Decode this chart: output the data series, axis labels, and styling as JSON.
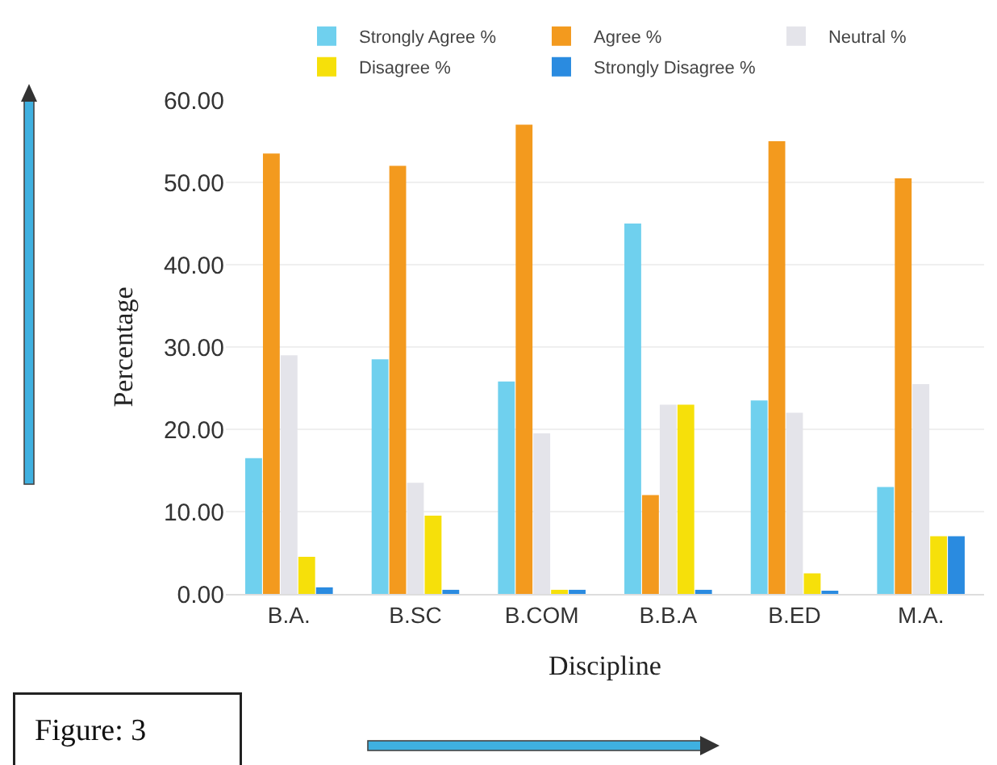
{
  "chart_data": {
    "type": "bar",
    "xlabel": "Discipline",
    "ylabel": "Percentage",
    "categories": [
      "B.A.",
      "B.SC",
      "B.COM",
      "B.B.A",
      "B.ED",
      "M.A."
    ],
    "series": [
      {
        "name": "Strongly Agree %",
        "color": "#6fd0ee",
        "values": [
          16.5,
          28.5,
          25.8,
          45,
          23.5,
          13
        ]
      },
      {
        "name": "Agree %",
        "color": "#f39a1e",
        "values": [
          53.5,
          52,
          57,
          12,
          55,
          50.5
        ]
      },
      {
        "name": "Neutral %",
        "color": "#e4e4ea",
        "values": [
          29,
          13.5,
          19.5,
          23,
          22,
          25.5
        ]
      },
      {
        "name": "Disagree %",
        "color": "#f6e00a",
        "values": [
          4.5,
          9.5,
          0.5,
          23,
          2.5,
          7
        ]
      },
      {
        "name": "Strongly Disagree %",
        "color": "#2a8be0",
        "values": [
          0.8,
          0.5,
          0.5,
          0.5,
          0.3,
          7
        ]
      }
    ],
    "ylim": [
      0,
      60
    ],
    "yticks": [
      {
        "value": 0,
        "label": "0.00"
      },
      {
        "value": 10,
        "label": "10.00"
      },
      {
        "value": 20,
        "label": "20.00"
      },
      {
        "value": 30,
        "label": "30.00"
      },
      {
        "value": 40,
        "label": "40.00"
      },
      {
        "value": 50,
        "label": "50.00"
      },
      {
        "value": 60,
        "label": "60.00"
      }
    ],
    "grid": "y",
    "legend": "top",
    "annotations": [
      "Figure: 3"
    ]
  }
}
